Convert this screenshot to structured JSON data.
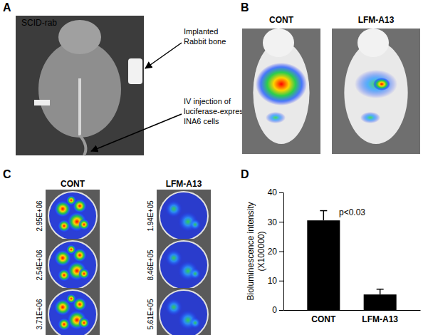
{
  "panels": {
    "A": {
      "label": "A",
      "title": "SCID-rab",
      "annotations": [
        [
          "Implanted",
          "Rabbit bone"
        ],
        [
          "IV injection of",
          "luciferase-expressing",
          "INA6 cells"
        ]
      ]
    },
    "B": {
      "label": "B",
      "images": [
        "CONT",
        "LFM-A13"
      ]
    },
    "C": {
      "label": "C",
      "groups": [
        {
          "name": "CONT",
          "dish_labels": [
            "2.95E+06",
            "2.54E+06",
            "3.71E+06"
          ]
        },
        {
          "name": "LFM-A13",
          "dish_labels": [
            "1.94E+05",
            "8.46E+05",
            "5.61E+05"
          ]
        }
      ]
    },
    "D": {
      "label": "D"
    }
  },
  "chart_data": {
    "type": "bar",
    "categories": [
      "CONT",
      "LFM-A13"
    ],
    "values": [
      30.5,
      5.3
    ],
    "errors": [
      3.3,
      1.8
    ],
    "color": "#000000",
    "ylim": [
      0,
      40
    ],
    "yticks": [
      0,
      10,
      20,
      30,
      40
    ],
    "y_label": [
      "Bioluminescence intensity",
      "(X100000)"
    ],
    "annotations": [
      "p<0.03"
    ]
  }
}
